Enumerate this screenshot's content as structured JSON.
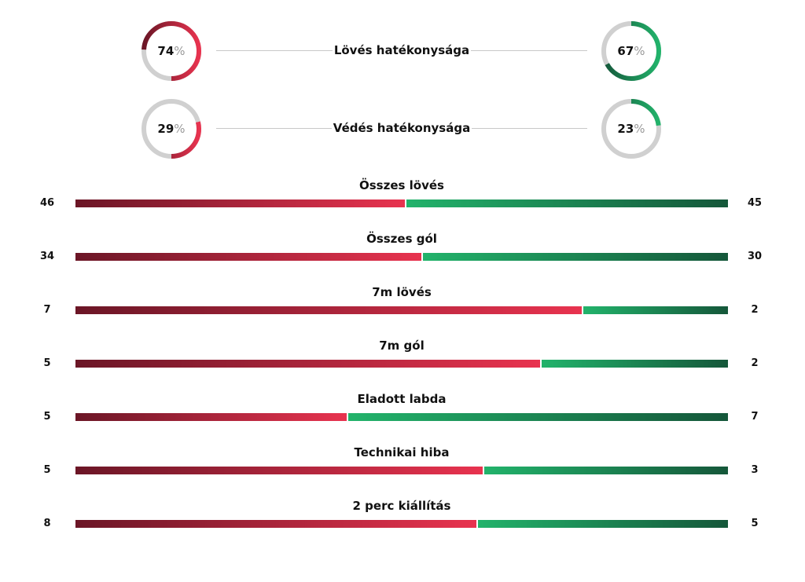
{
  "donuts": [
    {
      "title": "Lövés hatékonysága",
      "home": {
        "value": 74,
        "suffix": "%"
      },
      "away": {
        "value": 67,
        "suffix": "%"
      }
    },
    {
      "title": "Védés hatékonysága",
      "home": {
        "value": 29,
        "suffix": "%"
      },
      "away": {
        "value": 23,
        "suffix": "%"
      }
    }
  ],
  "stats": [
    {
      "title": "Összes lövés",
      "home": 46,
      "away": 45
    },
    {
      "title": "Összes gól",
      "home": 34,
      "away": 30
    },
    {
      "title": "7m lövés",
      "home": 7,
      "away": 2
    },
    {
      "title": "7m gól",
      "home": 5,
      "away": 2
    },
    {
      "title": "Eladott labda",
      "home": 5,
      "away": 7
    },
    {
      "title": "Technikai hiba",
      "home": 5,
      "away": 3
    },
    {
      "title": "2 perc kiállítás",
      "home": 8,
      "away": 5
    }
  ],
  "colors": {
    "home_dark": "#6b1626",
    "home_light": "#e8334f",
    "away_light": "#22b36b",
    "away_dark": "#15573a",
    "track": "#d0d0d0"
  },
  "chart_data": [
    {
      "type": "pie",
      "title": "Lövés hatékonysága",
      "series": [
        {
          "values": [
            74
          ]
        },
        {
          "values": [
            67
          ]
        }
      ],
      "unit": "%"
    },
    {
      "type": "pie",
      "title": "Védés hatékonysága",
      "series": [
        {
          "values": [
            29
          ]
        },
        {
          "values": [
            23
          ]
        }
      ],
      "unit": "%"
    },
    {
      "type": "bar",
      "categories": [
        "Összes lövés",
        "Összes gól",
        "7m lövés",
        "7m gól",
        "Eladott labda",
        "Technikai hiba",
        "2 perc kiállítás"
      ],
      "series": [
        {
          "values": [
            46,
            34,
            7,
            5,
            5,
            5,
            8
          ]
        },
        {
          "values": [
            45,
            30,
            2,
            2,
            7,
            3,
            5
          ]
        }
      ]
    }
  ]
}
